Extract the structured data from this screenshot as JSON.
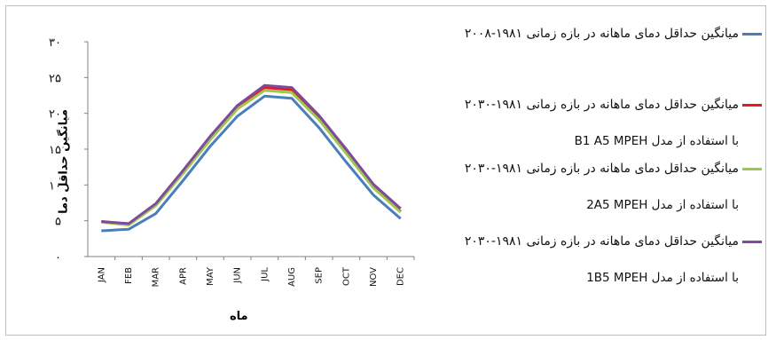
{
  "chart_data": {
    "type": "line",
    "categories": [
      "JAN",
      "FEB",
      "MAR",
      "APR",
      "MAY",
      "JUN",
      "JUL",
      "AUG",
      "SEP",
      "OCT",
      "NOV",
      "DEC"
    ],
    "yticks": [
      "۰",
      "۵",
      "۱۰",
      "۱۵",
      "۲۰",
      "۲۵",
      "۳۰"
    ],
    "ylim": [
      0,
      30
    ],
    "xlabel": "ماه",
    "ylabel": "میانگین حداقل دما",
    "grid": false,
    "legend_placement": "right",
    "series": [
      {
        "name": "میانگین حداقل دمای ماهانه در بازه زمانی ۱۹۸۱-۲۰۰۸",
        "model_note": "",
        "color": "#4a7ebb",
        "values": [
          3.6,
          3.8,
          6.0,
          10.6,
          15.4,
          19.6,
          22.4,
          22.1,
          18.0,
          13.2,
          8.6,
          5.3
        ]
      },
      {
        "name": "میانگین حداقل دمای ماهانه در بازه زمانی ۱۹۸۱-۲۰۳۰",
        "model_note": "با استفاده از مدل B1 A5 MPEH",
        "color": "#e8191d",
        "values": [
          4.9,
          4.5,
          7.3,
          11.8,
          16.6,
          20.9,
          23.6,
          23.3,
          19.4,
          14.7,
          9.8,
          6.3
        ]
      },
      {
        "name": "میانگین حداقل دمای ماهانه در بازه زمانی ۱۹۸۱-۲۰۳۰",
        "model_note": "با استفاده از مدل 2A5 MPEH",
        "color": "#9bc84d",
        "values": [
          4.8,
          4.4,
          7.1,
          11.6,
          16.3,
          20.6,
          23.2,
          22.9,
          19.1,
          14.4,
          9.6,
          6.2
        ]
      },
      {
        "name": "میانگین حداقل دمای ماهانه در بازه زمانی ۱۹۸۱-۲۰۳۰",
        "model_note": "با استفاده از مدل 1B5 MPEH",
        "color": "#7f4a9b",
        "values": [
          4.9,
          4.6,
          7.4,
          12.0,
          16.8,
          21.1,
          23.9,
          23.6,
          19.7,
          15.0,
          10.1,
          6.7
        ]
      }
    ]
  }
}
